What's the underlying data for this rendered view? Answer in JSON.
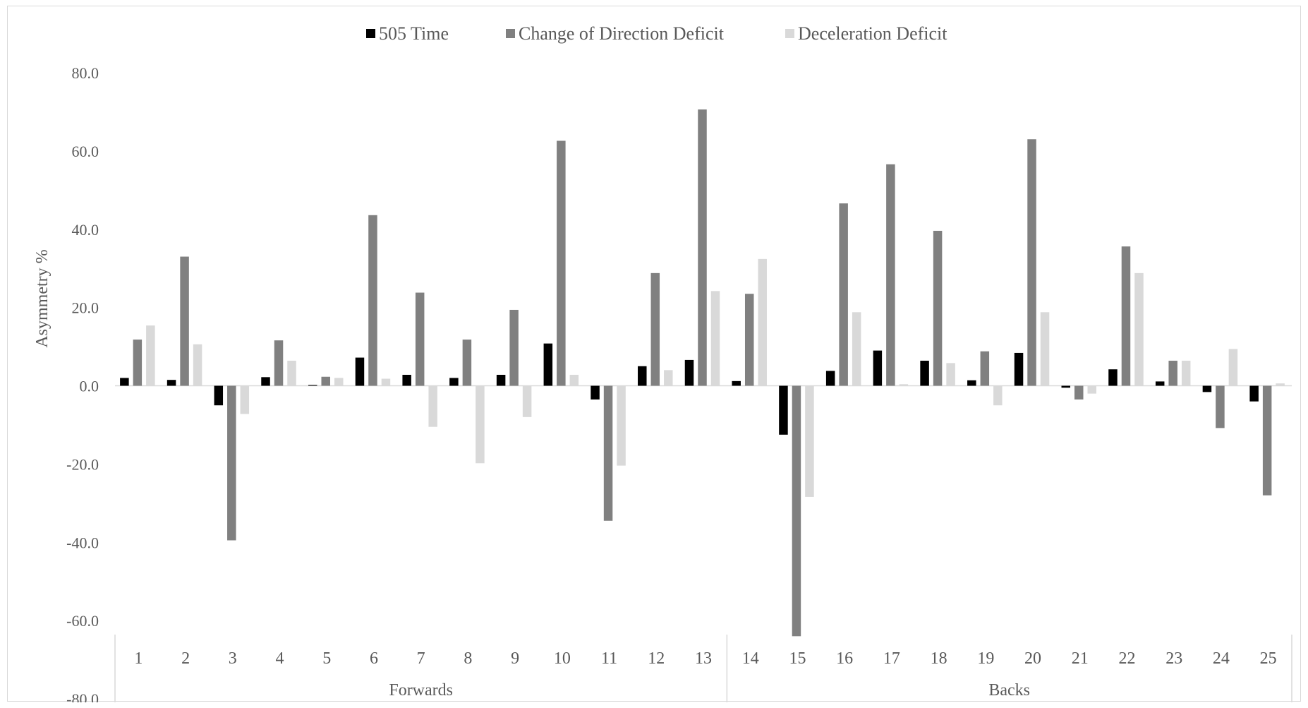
{
  "chart_data": {
    "type": "bar",
    "categories": [
      "1",
      "2",
      "3",
      "4",
      "5",
      "6",
      "7",
      "8",
      "9",
      "10",
      "11",
      "12",
      "13",
      "14",
      "15",
      "16",
      "17",
      "18",
      "19",
      "20",
      "21",
      "22",
      "23",
      "24",
      "25"
    ],
    "groups": [
      {
        "label": "Forwards",
        "from": 0,
        "to": 12
      },
      {
        "label": "Backs",
        "from": 13,
        "to": 24
      }
    ],
    "series": [
      {
        "name": "505 Time",
        "color": "#000000",
        "values": [
          2.0,
          1.5,
          -5.0,
          2.2,
          0.2,
          7.2,
          2.8,
          2.0,
          2.8,
          10.8,
          -3.5,
          5.0,
          6.6,
          1.2,
          -12.5,
          3.8,
          9.0,
          6.4,
          1.4,
          8.4,
          -0.5,
          4.2,
          1.1,
          -1.6,
          -4.0
        ]
      },
      {
        "name": "Change of Direction Deficit",
        "color": "#808080",
        "values": [
          11.8,
          33.0,
          -39.5,
          11.6,
          2.3,
          43.6,
          23.8,
          11.8,
          19.4,
          62.6,
          -34.5,
          28.8,
          70.6,
          23.5,
          -64.0,
          46.6,
          56.6,
          39.6,
          8.8,
          63.0,
          -3.5,
          35.6,
          6.4,
          -10.8,
          -28.0
        ]
      },
      {
        "name": "Deceleration Deficit",
        "color": "#d9d9d9",
        "values": [
          15.4,
          10.6,
          -7.2,
          6.4,
          2.0,
          1.8,
          -10.5,
          -19.8,
          -8.0,
          2.8,
          -20.4,
          4.0,
          24.2,
          32.4,
          -28.4,
          18.8,
          0.4,
          5.8,
          -5.0,
          18.8,
          -2.0,
          28.8,
          6.4,
          9.4,
          0.6
        ]
      }
    ],
    "yticks": [
      "80.0",
      "60.0",
      "40.0",
      "20.0",
      "0.0",
      "-20.0",
      "-40.0",
      "-60.0",
      "-80.0"
    ],
    "ylim": [
      -80,
      80
    ],
    "ylabel": "Asymmetry %",
    "xlabel": "",
    "title": "",
    "legend_position": "top",
    "grid": false
  }
}
